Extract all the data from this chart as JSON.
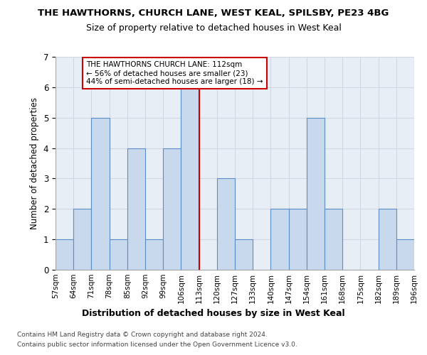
{
  "title": "THE HAWTHORNS, CHURCH LANE, WEST KEAL, SPILSBY, PE23 4BG",
  "subtitle": "Size of property relative to detached houses in West Keal",
  "xlabel": "Distribution of detached houses by size in West Keal",
  "ylabel": "Number of detached properties",
  "bin_edges": [
    "57sqm",
    "64sqm",
    "71sqm",
    "78sqm",
    "85sqm",
    "92sqm",
    "99sqm",
    "106sqm",
    "113sqm",
    "120sqm",
    "127sqm",
    "133sqm",
    "140sqm",
    "147sqm",
    "154sqm",
    "161sqm",
    "168sqm",
    "175sqm",
    "182sqm",
    "189sqm",
    "196sqm"
  ],
  "bar_values": [
    1,
    2,
    5,
    1,
    4,
    1,
    4,
    6,
    0,
    3,
    1,
    0,
    2,
    2,
    5,
    2,
    0,
    0,
    2,
    1
  ],
  "bar_color": "#c8d9ee",
  "bar_edge_color": "#5b8ec7",
  "property_line_x": 8,
  "property_line_color": "#cc0000",
  "annotation_text": "THE HAWTHORNS CHURCH LANE: 112sqm\n← 56% of detached houses are smaller (23)\n44% of semi-detached houses are larger (18) →",
  "annotation_box_edge": "#cc0000",
  "annotation_box_face": "#ffffff",
  "ylim": [
    0,
    7
  ],
  "yticks": [
    0,
    1,
    2,
    3,
    4,
    5,
    6,
    7
  ],
  "grid_color": "#d0d8e4",
  "background_color": "#e8eef6",
  "footer_line1": "Contains HM Land Registry data © Crown copyright and database right 2024.",
  "footer_line2": "Contains public sector information licensed under the Open Government Licence v3.0."
}
